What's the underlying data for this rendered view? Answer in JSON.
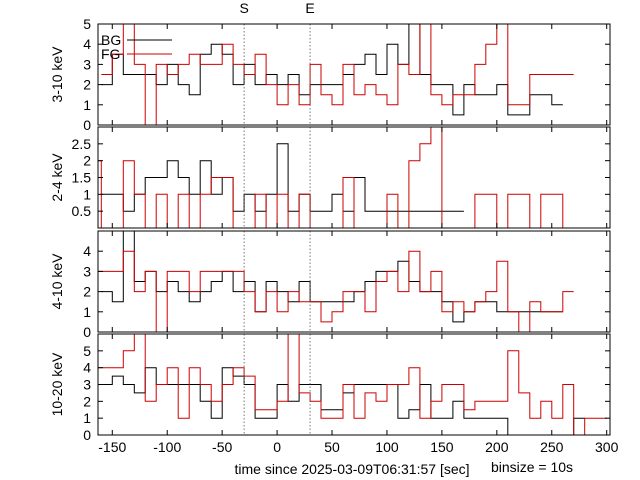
{
  "figure": {
    "start_label": "S",
    "end_label": "E",
    "start_time": -30,
    "end_time": 30,
    "xlabel": "time since 2025-03-09T06:31:57 [sec]",
    "binsize_label": "binsize = 10s",
    "colors": {
      "bg": "#000000",
      "fg": "#cc0000",
      "frame": "#000000",
      "marker_line": "#555555"
    }
  },
  "chart_data": [
    {
      "type": "line",
      "step": true,
      "ylabel": "3-10 keV",
      "legend": [
        "BG",
        "FG"
      ],
      "legend_position": "top-left",
      "xlim": [
        -163,
        303
      ],
      "ylim": [
        0,
        5
      ],
      "yticks": [
        "0",
        "1",
        "2",
        "3",
        "4",
        "5"
      ],
      "xticks": [
        "-150",
        "-100",
        "-50",
        "0",
        "50",
        "100",
        "150",
        "200",
        "250",
        "300"
      ],
      "series": [
        {
          "name": "BG",
          "bin_starts": [
            -160,
            -150,
            -140,
            -130,
            -120,
            -110,
            -100,
            -90,
            -80,
            -70,
            -60,
            -50,
            -40,
            -30,
            -20,
            -10,
            0,
            10,
            20,
            30,
            40,
            50,
            60,
            70,
            80,
            90,
            100,
            110,
            120,
            130,
            140,
            150,
            160,
            170,
            180,
            190,
            200,
            210,
            220,
            230,
            240,
            250
          ],
          "values": [
            2,
            3.5,
            2.5,
            2.5,
            2.5,
            2,
            3,
            2,
            1.5,
            3.5,
            4,
            3.5,
            2,
            3,
            2,
            2.5,
            2,
            2.5,
            1.5,
            2,
            2,
            2,
            2.5,
            3,
            3.5,
            2.5,
            4,
            3,
            5,
            2.5,
            2,
            2,
            0.5,
            2,
            1.5,
            1.5,
            2,
            0.5,
            0.5,
            1.5,
            1.5,
            1
          ]
        },
        {
          "name": "FG",
          "bin_starts": [
            -160,
            -150,
            -140,
            -130,
            -120,
            -110,
            -100,
            -90,
            -80,
            -70,
            -60,
            -50,
            -40,
            -30,
            -20,
            -10,
            0,
            10,
            20,
            30,
            40,
            50,
            60,
            70,
            80,
            90,
            100,
            110,
            120,
            130,
            140,
            150,
            160,
            170,
            180,
            190,
            200,
            210,
            220,
            230,
            240,
            250,
            260
          ],
          "values": [
            2.5,
            3.5,
            5,
            3,
            0,
            3,
            2.5,
            3,
            3.5,
            3,
            3,
            4,
            3,
            2.5,
            3.5,
            2,
            1,
            2,
            1,
            3,
            1.5,
            1,
            3,
            1.5,
            2,
            1.5,
            1,
            3,
            2.5,
            5,
            1.5,
            1,
            1.5,
            1.5,
            3,
            4,
            5,
            1,
            1,
            2.5,
            2.5,
            2.5,
            2.5
          ]
        }
      ]
    },
    {
      "type": "line",
      "step": true,
      "ylabel": "2-4 keV",
      "xlim": [
        -163,
        303
      ],
      "ylim": [
        0,
        3
      ],
      "yticks": [
        "0.5",
        "1",
        "1.5",
        "2",
        "2.5"
      ],
      "series": [
        {
          "name": "BG",
          "bin_starts": [
            -160,
            -150,
            -140,
            -130,
            -120,
            -110,
            -100,
            -90,
            -80,
            -70,
            -60,
            -50,
            -40,
            -30,
            -20,
            -10,
            0,
            10,
            20,
            30,
            40,
            50,
            60,
            70,
            80,
            90,
            100,
            110,
            120,
            130,
            140,
            150,
            160
          ],
          "values": [
            1,
            1,
            0.5,
            1,
            1.5,
            1.5,
            2,
            1.5,
            1,
            2,
            1,
            1.5,
            0.5,
            1,
            0.5,
            1,
            2.5,
            0.5,
            1,
            0.5,
            0.5,
            1,
            0.5,
            1.5,
            0.5,
            0.5,
            0.5,
            0.5,
            0.5,
            0.5,
            0.5,
            0.5,
            0.5
          ]
        },
        {
          "name": "FG",
          "bin_starts": [
            -170,
            -160,
            -150,
            -140,
            -130,
            -120,
            -110,
            -100,
            -90,
            -80,
            -70,
            -60,
            -50,
            -40,
            -30,
            -20,
            -10,
            0,
            10,
            20,
            30,
            40,
            50,
            60,
            70,
            80,
            90,
            100,
            110,
            120,
            130,
            140,
            150,
            160,
            170,
            180,
            190,
            200,
            210,
            220,
            230,
            240,
            250,
            260
          ],
          "values": [
            2,
            0,
            0,
            2,
            1,
            0,
            1,
            0,
            1,
            0,
            1,
            1.5,
            1.5,
            0,
            0,
            1,
            0,
            1,
            0,
            1,
            0,
            0,
            0,
            1.5,
            0,
            0,
            0,
            1,
            0,
            2,
            2.5,
            3,
            0,
            0,
            0,
            1,
            1,
            0,
            1,
            1,
            0,
            1,
            1,
            0
          ]
        }
      ]
    },
    {
      "type": "line",
      "step": true,
      "ylabel": "4-10 keV",
      "xlim": [
        -163,
        303
      ],
      "ylim": [
        0,
        5
      ],
      "yticks": [
        "0",
        "1",
        "2",
        "3",
        "4"
      ],
      "series": [
        {
          "name": "BG",
          "bin_starts": [
            -160,
            -150,
            -140,
            -130,
            -120,
            -110,
            -100,
            -90,
            -80,
            -70,
            -60,
            -50,
            -40,
            -30,
            -20,
            -10,
            0,
            10,
            20,
            30,
            40,
            50,
            60,
            70,
            80,
            90,
            100,
            110,
            120,
            130,
            140,
            150,
            160,
            170,
            180,
            190,
            200,
            210,
            220,
            230,
            240,
            250
          ],
          "values": [
            2,
            1.5,
            5,
            2.5,
            3,
            2,
            2.5,
            2,
            1.5,
            2,
            2.5,
            3,
            2,
            2.5,
            1,
            2.5,
            2,
            1.5,
            2.5,
            1.5,
            1.5,
            1.5,
            1.5,
            2,
            2.5,
            3,
            3,
            3.5,
            2.5,
            2,
            2,
            1.5,
            0.5,
            1,
            1.5,
            1.5,
            1,
            1,
            1,
            1,
            1,
            1
          ]
        },
        {
          "name": "FG",
          "bin_starts": [
            -170,
            -160,
            -150,
            -140,
            -130,
            -120,
            -110,
            -100,
            -90,
            -80,
            -70,
            -60,
            -50,
            -40,
            -30,
            -20,
            -10,
            0,
            10,
            20,
            30,
            40,
            50,
            60,
            70,
            80,
            90,
            100,
            110,
            120,
            130,
            140,
            150,
            160,
            170,
            180,
            190,
            200,
            210,
            220,
            230,
            240,
            250,
            260
          ],
          "values": [
            3,
            3,
            3,
            4,
            2,
            3,
            0,
            3,
            3,
            2,
            3,
            3,
            3,
            3,
            2,
            1,
            2,
            1,
            2,
            1.5,
            1.5,
            0.5,
            1,
            2,
            2,
            1,
            2.5,
            3,
            2,
            4,
            2,
            3,
            1,
            1.5,
            1,
            1.5,
            2,
            3.5,
            1,
            0,
            1.5,
            1,
            1,
            2
          ]
        }
      ]
    },
    {
      "type": "line",
      "step": true,
      "ylabel": "10-20 keV",
      "xlim": [
        -163,
        303
      ],
      "ylim": [
        0,
        6
      ],
      "yticks": [
        "0",
        "1",
        "2",
        "3",
        "4",
        "5"
      ],
      "series": [
        {
          "name": "BG",
          "bin_starts": [
            -160,
            -150,
            -140,
            -130,
            -120,
            -110,
            -100,
            -90,
            -80,
            -70,
            -60,
            -50,
            -40,
            -30,
            -20,
            -10,
            0,
            10,
            20,
            30,
            40,
            50,
            60,
            70,
            80,
            90,
            100,
            110,
            120,
            130,
            140,
            150,
            160,
            170,
            180,
            190,
            200,
            210,
            220,
            230,
            240,
            250,
            260,
            270
          ],
          "values": [
            3,
            3.5,
            3,
            2.5,
            4,
            3,
            3,
            3,
            3,
            2,
            1,
            4,
            3.5,
            3,
            1,
            1,
            3,
            2,
            3,
            3,
            1.5,
            1.5,
            2.5,
            3,
            3,
            3,
            3,
            1,
            1.5,
            3,
            1,
            1,
            2,
            1,
            1,
            1,
            1,
            0,
            0,
            0,
            0,
            0,
            0,
            1
          ]
        },
        {
          "name": "FG",
          "bin_starts": [
            -170,
            -160,
            -150,
            -140,
            -130,
            -120,
            -110,
            -100,
            -90,
            -80,
            -70,
            -60,
            -50,
            -40,
            -30,
            -20,
            -10,
            0,
            10,
            20,
            30,
            40,
            50,
            60,
            70,
            80,
            90,
            100,
            110,
            120,
            130,
            140,
            150,
            160,
            170,
            180,
            190,
            200,
            210,
            220,
            230,
            240,
            250,
            260,
            270,
            280,
            290
          ],
          "values": [
            4,
            4,
            4,
            5,
            6,
            2,
            3,
            4,
            1,
            4,
            3,
            2,
            3,
            4,
            3.5,
            1.5,
            1.5,
            2,
            6,
            2.5,
            2,
            1,
            1,
            3,
            1,
            2.5,
            2,
            3,
            3,
            4,
            1,
            2,
            3,
            3,
            1.5,
            2,
            2,
            2,
            5,
            2.5,
            1,
            2,
            1,
            3,
            0,
            1,
            1
          ]
        }
      ]
    }
  ]
}
